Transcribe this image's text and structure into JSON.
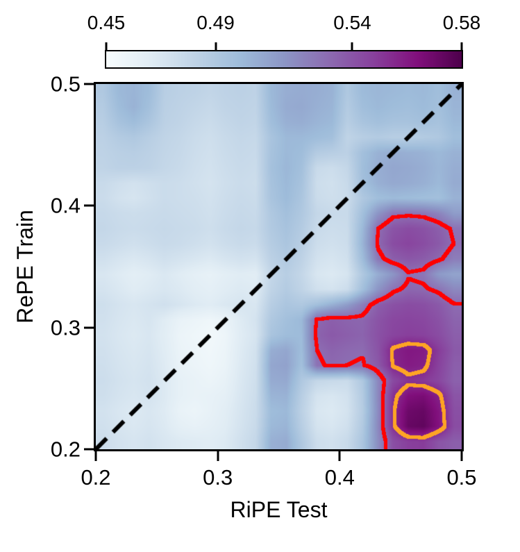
{
  "figure": {
    "colorbar": {
      "tick_labels": [
        "0.45",
        "0.49",
        "0.54",
        "0.58"
      ],
      "tick_values": [
        0.45,
        0.49,
        0.54,
        0.58
      ]
    },
    "x_axis": {
      "label": "RiPE Test",
      "tick_labels": [
        "0.2",
        "0.3",
        "0.4",
        "0.5"
      ]
    },
    "y_axis": {
      "label": "RePE Train",
      "tick_labels": [
        "0.5",
        "0.4",
        "0.3",
        "0.2"
      ]
    }
  },
  "chart_data": {
    "type": "heatmap",
    "title": "",
    "xlabel": "RiPE Test",
    "ylabel": "RePE Train",
    "x_range": [
      0.2,
      0.5
    ],
    "y_range": [
      0.2,
      0.5
    ],
    "x_ticks": [
      0.2,
      0.3,
      0.4,
      0.5
    ],
    "y_ticks": [
      0.2,
      0.3,
      0.4,
      0.5
    ],
    "colorbar_range": [
      0.45,
      0.58
    ],
    "colorbar_ticks": [
      0.45,
      0.49,
      0.54,
      0.58
    ],
    "colormap": "BuPu",
    "colormap_stops": [
      "#f7fcfd",
      "#e0ecf4",
      "#bfd3e6",
      "#9ebcda",
      "#8c96c6",
      "#8c6bb1",
      "#88419d",
      "#810f7c",
      "#4d004b"
    ],
    "diagonal_line": {
      "style": "dashed",
      "color": "#000000",
      "from": [
        0.2,
        0.2
      ],
      "to": [
        0.5,
        0.5
      ]
    },
    "contours": [
      {
        "level": 0.53,
        "color": "#ff0000"
      },
      {
        "level": 0.555,
        "color": "#ffa424"
      }
    ],
    "grid_order": "rows top (y=0.5) to bottom (y=0.2), cols left (x=0.2) to right (x=0.5)",
    "values": [
      [
        0.49,
        0.5,
        0.502,
        0.498,
        0.486,
        0.484,
        0.483,
        0.481,
        0.483,
        0.484,
        0.483,
        0.5,
        0.505,
        0.506,
        0.505,
        0.503,
        0.49,
        0.499,
        0.501,
        0.5,
        0.499,
        0.5,
        0.497,
        0.503
      ],
      [
        0.488,
        0.498,
        0.503,
        0.496,
        0.485,
        0.483,
        0.481,
        0.479,
        0.482,
        0.483,
        0.482,
        0.499,
        0.506,
        0.507,
        0.504,
        0.502,
        0.488,
        0.497,
        0.5,
        0.498,
        0.497,
        0.499,
        0.496,
        0.502
      ],
      [
        0.486,
        0.494,
        0.498,
        0.492,
        0.484,
        0.482,
        0.479,
        0.477,
        0.48,
        0.482,
        0.481,
        0.497,
        0.504,
        0.505,
        0.502,
        0.5,
        0.486,
        0.493,
        0.496,
        0.494,
        0.494,
        0.496,
        0.494,
        0.5
      ],
      [
        0.484,
        0.488,
        0.49,
        0.486,
        0.482,
        0.48,
        0.477,
        0.475,
        0.478,
        0.48,
        0.479,
        0.493,
        0.5,
        0.5,
        0.498,
        0.496,
        0.482,
        0.486,
        0.488,
        0.486,
        0.486,
        0.488,
        0.49,
        0.497
      ],
      [
        0.483,
        0.485,
        0.486,
        0.484,
        0.481,
        0.479,
        0.476,
        0.474,
        0.477,
        0.479,
        0.478,
        0.494,
        0.5,
        0.498,
        0.488,
        0.486,
        0.484,
        0.496,
        0.503,
        0.505,
        0.504,
        0.503,
        0.5,
        0.503
      ],
      [
        0.482,
        0.484,
        0.484,
        0.483,
        0.48,
        0.478,
        0.475,
        0.473,
        0.476,
        0.478,
        0.477,
        0.495,
        0.501,
        0.496,
        0.478,
        0.476,
        0.48,
        0.497,
        0.505,
        0.508,
        0.507,
        0.505,
        0.501,
        0.505
      ],
      [
        0.478,
        0.475,
        0.473,
        0.475,
        0.477,
        0.476,
        0.474,
        0.472,
        0.475,
        0.477,
        0.476,
        0.494,
        0.5,
        0.494,
        0.476,
        0.474,
        0.478,
        0.496,
        0.504,
        0.507,
        0.506,
        0.504,
        0.5,
        0.506
      ],
      [
        0.477,
        0.473,
        0.471,
        0.474,
        0.477,
        0.476,
        0.475,
        0.473,
        0.476,
        0.478,
        0.477,
        0.493,
        0.499,
        0.492,
        0.477,
        0.475,
        0.477,
        0.49,
        0.497,
        0.499,
        0.498,
        0.497,
        0.496,
        0.503
      ],
      [
        0.479,
        0.477,
        0.476,
        0.477,
        0.478,
        0.477,
        0.476,
        0.474,
        0.477,
        0.479,
        0.478,
        0.49,
        0.496,
        0.49,
        0.48,
        0.478,
        0.478,
        0.496,
        0.515,
        0.527,
        0.528,
        0.527,
        0.522,
        0.512
      ],
      [
        0.48,
        0.478,
        0.477,
        0.478,
        0.479,
        0.478,
        0.477,
        0.475,
        0.478,
        0.48,
        0.479,
        0.489,
        0.494,
        0.488,
        0.478,
        0.476,
        0.477,
        0.5,
        0.53,
        0.54,
        0.543,
        0.541,
        0.536,
        0.528
      ],
      [
        0.478,
        0.476,
        0.474,
        0.476,
        0.478,
        0.477,
        0.475,
        0.473,
        0.476,
        0.478,
        0.477,
        0.487,
        0.492,
        0.486,
        0.476,
        0.474,
        0.476,
        0.502,
        0.532,
        0.543,
        0.546,
        0.543,
        0.538,
        0.53
      ],
      [
        0.474,
        0.471,
        0.469,
        0.471,
        0.474,
        0.472,
        0.47,
        0.468,
        0.471,
        0.473,
        0.472,
        0.484,
        0.489,
        0.483,
        0.473,
        0.471,
        0.474,
        0.498,
        0.526,
        0.536,
        0.539,
        0.537,
        0.532,
        0.524
      ],
      [
        0.47,
        0.467,
        0.464,
        0.466,
        0.469,
        0.466,
        0.463,
        0.461,
        0.464,
        0.466,
        0.465,
        0.48,
        0.486,
        0.48,
        0.47,
        0.468,
        0.471,
        0.49,
        0.505,
        0.515,
        0.529,
        0.527,
        0.513,
        0.509
      ],
      [
        0.472,
        0.469,
        0.466,
        0.468,
        0.47,
        0.468,
        0.465,
        0.463,
        0.466,
        0.468,
        0.467,
        0.482,
        0.488,
        0.482,
        0.474,
        0.472,
        0.476,
        0.496,
        0.515,
        0.528,
        0.533,
        0.532,
        0.528,
        0.52
      ],
      [
        0.475,
        0.472,
        0.47,
        0.472,
        0.474,
        0.471,
        0.468,
        0.466,
        0.469,
        0.471,
        0.47,
        0.486,
        0.492,
        0.49,
        0.496,
        0.504,
        0.512,
        0.524,
        0.536,
        0.541,
        0.543,
        0.542,
        0.538,
        0.531
      ],
      [
        0.474,
        0.471,
        0.469,
        0.471,
        0.466,
        0.46,
        0.458,
        0.456,
        0.459,
        0.467,
        0.472,
        0.49,
        0.496,
        0.5,
        0.532,
        0.536,
        0.534,
        0.533,
        0.54,
        0.545,
        0.546,
        0.545,
        0.541,
        0.534
      ],
      [
        0.473,
        0.47,
        0.468,
        0.47,
        0.465,
        0.458,
        0.456,
        0.454,
        0.457,
        0.466,
        0.471,
        0.493,
        0.498,
        0.499,
        0.534,
        0.538,
        0.536,
        0.534,
        0.541,
        0.546,
        0.548,
        0.547,
        0.543,
        0.536
      ],
      [
        0.474,
        0.471,
        0.469,
        0.471,
        0.466,
        0.459,
        0.457,
        0.455,
        0.458,
        0.467,
        0.473,
        0.505,
        0.508,
        0.498,
        0.53,
        0.534,
        0.532,
        0.531,
        0.54,
        0.557,
        0.561,
        0.56,
        0.549,
        0.538
      ],
      [
        0.475,
        0.472,
        0.47,
        0.472,
        0.467,
        0.46,
        0.458,
        0.456,
        0.459,
        0.468,
        0.474,
        0.508,
        0.51,
        0.496,
        0.528,
        0.532,
        0.53,
        0.529,
        0.538,
        0.556,
        0.56,
        0.558,
        0.547,
        0.536
      ],
      [
        0.476,
        0.473,
        0.471,
        0.473,
        0.468,
        0.462,
        0.46,
        0.458,
        0.461,
        0.469,
        0.475,
        0.506,
        0.507,
        0.49,
        0.48,
        0.478,
        0.477,
        0.49,
        0.52,
        0.544,
        0.552,
        0.55,
        0.545,
        0.535
      ],
      [
        0.475,
        0.472,
        0.47,
        0.472,
        0.468,
        0.462,
        0.46,
        0.461,
        0.463,
        0.47,
        0.476,
        0.502,
        0.503,
        0.486,
        0.472,
        0.47,
        0.473,
        0.488,
        0.52,
        0.552,
        0.564,
        0.566,
        0.558,
        0.54
      ],
      [
        0.473,
        0.47,
        0.468,
        0.47,
        0.467,
        0.46,
        0.458,
        0.461,
        0.465,
        0.471,
        0.477,
        0.498,
        0.5,
        0.484,
        0.47,
        0.468,
        0.472,
        0.487,
        0.519,
        0.554,
        0.57,
        0.572,
        0.562,
        0.542
      ],
      [
        0.474,
        0.471,
        0.469,
        0.471,
        0.468,
        0.463,
        0.461,
        0.463,
        0.466,
        0.472,
        0.478,
        0.5,
        0.502,
        0.486,
        0.472,
        0.47,
        0.474,
        0.489,
        0.52,
        0.553,
        0.572,
        0.574,
        0.563,
        0.543
      ],
      [
        0.476,
        0.473,
        0.471,
        0.473,
        0.47,
        0.468,
        0.467,
        0.466,
        0.468,
        0.474,
        0.48,
        0.504,
        0.506,
        0.49,
        0.476,
        0.474,
        0.478,
        0.492,
        0.518,
        0.542,
        0.548,
        0.549,
        0.54,
        0.536
      ]
    ]
  }
}
